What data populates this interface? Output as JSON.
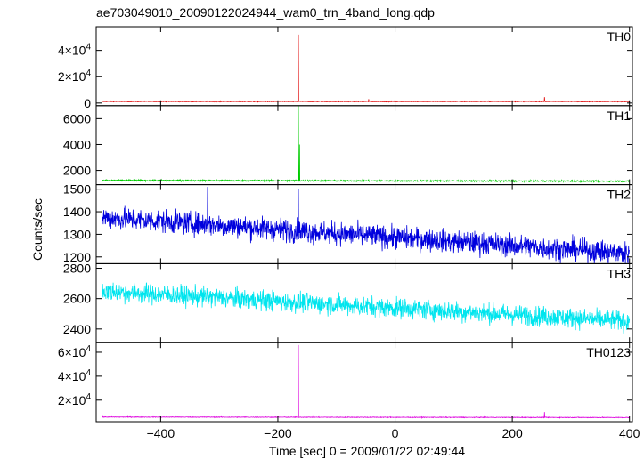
{
  "chart_data": {
    "type": "line",
    "title": "ae703049010_20090122024944_wam0_trn_4band_long.qdp",
    "xlabel": "Time [sec] 0 = 2009/01/22 02:49:44",
    "ylabel": "Counts/sec",
    "xlim": [
      -510,
      405
    ],
    "x_ticks": [
      "−400",
      "−200",
      "0",
      "200",
      "400"
    ],
    "x_tick_values": [
      -400,
      -200,
      0,
      200,
      400
    ],
    "panels": [
      {
        "label": "TH0",
        "color": "#e00000",
        "ylim": [
          -2000,
          58000
        ],
        "y_ticks": [
          {
            "value": 0,
            "mant": "0",
            "exp": ""
          },
          {
            "value": 20000,
            "mant": "2×10",
            "exp": "4"
          },
          {
            "value": 40000,
            "mant": "4×10",
            "exp": "4"
          }
        ],
        "x_start": -500,
        "x_end": 400,
        "baseline": 1200,
        "noise": 250,
        "trend": 0,
        "spikes": [
          {
            "x": -165,
            "peak": 52000,
            "width": 2
          },
          {
            "x": -45,
            "peak": 3000,
            "width": 1
          },
          {
            "x": 255,
            "peak": 4500,
            "width": 1
          }
        ]
      },
      {
        "label": "TH1",
        "color": "#00cc00",
        "ylim": [
          900,
          7000
        ],
        "y_ticks": [
          {
            "value": 2000,
            "mant": "2000",
            "exp": ""
          },
          {
            "value": 4000,
            "mant": "4000",
            "exp": ""
          },
          {
            "value": 6000,
            "mant": "6000",
            "exp": ""
          }
        ],
        "x_start": -500,
        "x_end": 400,
        "baseline": 1230,
        "noise": 50,
        "trend": -60,
        "spikes": [
          {
            "x": -165,
            "peak": 7000,
            "width": 1
          },
          {
            "x": -163,
            "peak": 4000,
            "width": 1
          }
        ]
      },
      {
        "label": "TH2",
        "color": "#0000dd",
        "ylim": [
          1170,
          1520
        ],
        "y_ticks": [
          {
            "value": 1200,
            "mant": "1200",
            "exp": ""
          },
          {
            "value": 1300,
            "mant": "1300",
            "exp": ""
          },
          {
            "value": 1400,
            "mant": "1400",
            "exp": ""
          },
          {
            "value": 1500,
            "mant": "1500",
            "exp": ""
          }
        ],
        "x_start": -500,
        "x_end": 400,
        "baseline": 1375,
        "noise": 42,
        "trend": -160,
        "spikes": [
          {
            "x": -320,
            "peak": 1510,
            "width": 1
          },
          {
            "x": -165,
            "peak": 1500,
            "width": 1
          }
        ]
      },
      {
        "label": "TH3",
        "color": "#00e5ee",
        "ylim": [
          2310,
          2830
        ],
        "y_ticks": [
          {
            "value": 2400,
            "mant": "2400",
            "exp": ""
          },
          {
            "value": 2600,
            "mant": "2600",
            "exp": ""
          },
          {
            "value": 2800,
            "mant": "2800",
            "exp": ""
          }
        ],
        "x_start": -500,
        "x_end": 400,
        "baseline": 2650,
        "noise": 55,
        "trend": -200,
        "spikes": []
      },
      {
        "label": "TH0123",
        "color": "#dd00dd",
        "ylim": [
          2000,
          68000
        ],
        "y_ticks": [
          {
            "value": 20000,
            "mant": "2×10",
            "exp": "4"
          },
          {
            "value": 40000,
            "mant": "4×10",
            "exp": "4"
          },
          {
            "value": 60000,
            "mant": "6×10",
            "exp": "4"
          }
        ],
        "x_start": -500,
        "x_end": 400,
        "baseline": 5900,
        "noise": 250,
        "trend": -400,
        "spikes": [
          {
            "x": -165,
            "peak": 66000,
            "width": 2
          },
          {
            "x": 255,
            "peak": 10000,
            "width": 1
          }
        ]
      }
    ]
  }
}
